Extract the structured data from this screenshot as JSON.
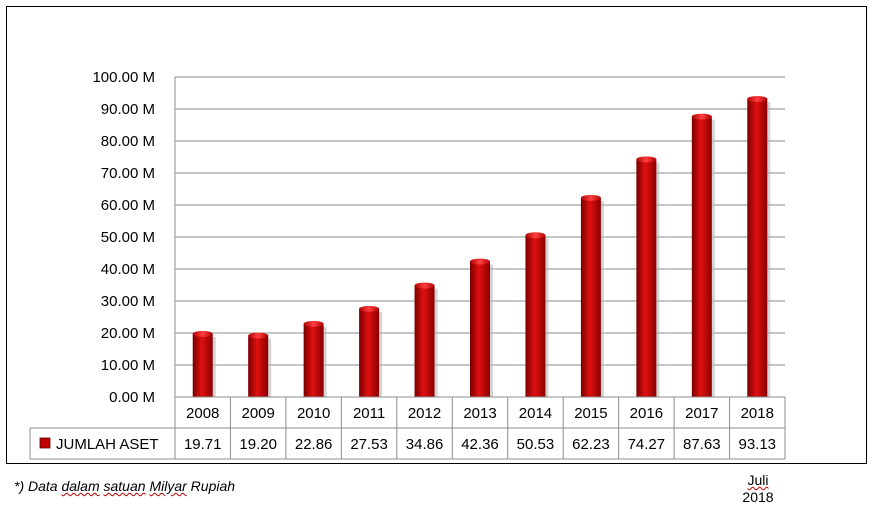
{
  "chart_data": {
    "type": "bar",
    "categories": [
      "2008",
      "2009",
      "2010",
      "2011",
      "2012",
      "2013",
      "2014",
      "2015",
      "2016",
      "2017",
      "2018"
    ],
    "series": [
      {
        "name": "JUMLAH ASET",
        "values": [
          19.71,
          19.2,
          22.86,
          27.53,
          34.86,
          42.36,
          50.53,
          62.23,
          74.27,
          87.63,
          93.13
        ],
        "value_labels": [
          "19.71",
          "19.20",
          "22.86",
          "27.53",
          "34.86",
          "42.36",
          "50.53",
          "62.23",
          "74.27",
          "87.63",
          "93.13"
        ]
      }
    ],
    "ylim": [
      0,
      100
    ],
    "yticks": [
      0,
      10,
      20,
      30,
      40,
      50,
      60,
      70,
      80,
      90,
      100
    ],
    "ytick_labels": [
      "0.00 M",
      "10.00 M",
      "20.00 M",
      "30.00 M",
      "40.00 M",
      "50.00 M",
      "60.00 M",
      "70.00 M",
      "80.00 M",
      "90.00 M",
      "100.00 M"
    ],
    "grid": true,
    "legend": "data-table",
    "bar_color": "#c00000"
  },
  "footnote": {
    "prefix": "*) Data ",
    "w1": "dalam",
    "w2": "satuan",
    "w3": "Milyar",
    "suffix": " Rupiah"
  },
  "asof": {
    "line1": "Juli",
    "line2": "2018"
  }
}
